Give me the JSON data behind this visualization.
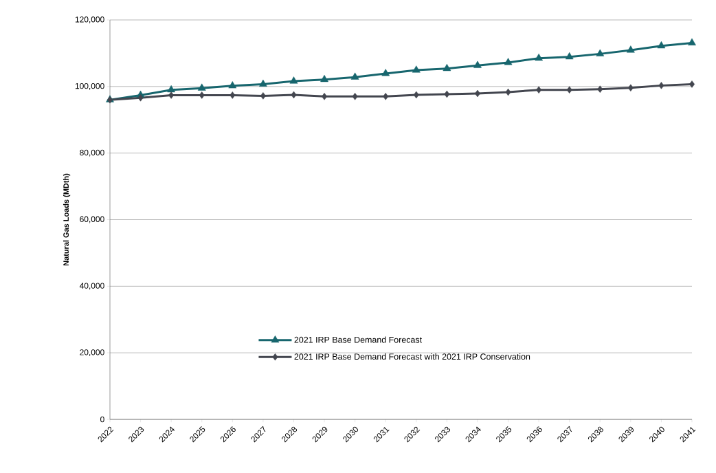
{
  "chart_data": {
    "type": "line",
    "ylabel": "Natural Gas Loads (MDth)",
    "categories": [
      "2022",
      "2023",
      "2024",
      "2025",
      "2026",
      "2027",
      "2028",
      "2029",
      "2030",
      "2031",
      "2032",
      "2033",
      "2034",
      "2035",
      "2036",
      "2037",
      "2038",
      "2039",
      "2040",
      "2041"
    ],
    "series": [
      {
        "name": "2021 IRP Base Demand Forecast",
        "color": "#17666e",
        "marker": "triangle",
        "values": [
          96000,
          97400,
          99000,
          99500,
          100200,
          100700,
          101600,
          102100,
          102800,
          103900,
          104900,
          105400,
          106300,
          107200,
          108500,
          108900,
          109800,
          110900,
          112200,
          113100
        ]
      },
      {
        "name": "2021 IRP Base Demand Forecast with 2021 IRP Conservation",
        "color": "#43464f",
        "marker": "diamond",
        "values": [
          96000,
          96600,
          97400,
          97400,
          97400,
          97200,
          97500,
          97000,
          97000,
          97000,
          97500,
          97700,
          97900,
          98300,
          99000,
          99000,
          99200,
          99600,
          100300,
          100700
        ]
      }
    ],
    "ylim": [
      0,
      120000
    ],
    "yticks": [
      {
        "value": 0,
        "label": "0"
      },
      {
        "value": 20000,
        "label": "20,000"
      },
      {
        "value": 40000,
        "label": "40,000"
      },
      {
        "value": 60000,
        "label": "60,000"
      },
      {
        "value": 80000,
        "label": "80,000"
      },
      {
        "value": 100000,
        "label": "100,000"
      },
      {
        "value": 120000,
        "label": "120,000"
      }
    ],
    "grid": "y",
    "legend": "bottom",
    "line_style": "solid"
  }
}
